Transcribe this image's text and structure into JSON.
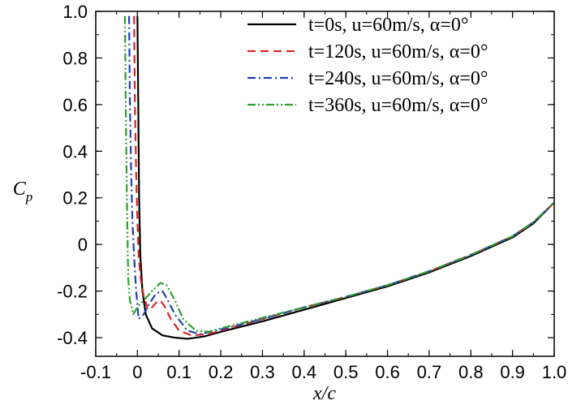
{
  "chart_data": {
    "type": "line",
    "xlabel": "x/c",
    "ylabel": "Cp",
    "xlim": [
      -0.1,
      1.0
    ],
    "ylim": [
      -0.48,
      1.0
    ],
    "xticks": [
      -0.1,
      0,
      0.1,
      0.2,
      0.3,
      0.4,
      0.5,
      0.6,
      0.7,
      0.8,
      0.9,
      1.0
    ],
    "xtick_labels": [
      "-0.1",
      "0",
      "0.1",
      "0.2",
      "0.3",
      "0.4",
      "0.5",
      "0.6",
      "0.7",
      "0.8",
      "0.9",
      "1.0"
    ],
    "yticks": [
      -0.4,
      -0.2,
      0,
      0.2,
      0.4,
      0.6,
      0.8,
      1.0
    ],
    "ytick_labels": [
      "-0.4",
      "-0.2",
      "0",
      "0.2",
      "0.4",
      "0.6",
      "0.8",
      "1.0"
    ],
    "legend_position": "top-right",
    "grid": false,
    "series": [
      {
        "name": "t=0s,    u=60m/s, α=0°",
        "color": "#000000",
        "dash": "solid",
        "points": [
          [
            0.0,
            0.98
          ],
          [
            0.002,
            0.6
          ],
          [
            0.004,
            0.2
          ],
          [
            0.007,
            -0.05
          ],
          [
            0.012,
            -0.2
          ],
          [
            0.02,
            -0.3
          ],
          [
            0.035,
            -0.36
          ],
          [
            0.06,
            -0.39
          ],
          [
            0.09,
            -0.4
          ],
          [
            0.12,
            -0.405
          ],
          [
            0.16,
            -0.395
          ],
          [
            0.2,
            -0.375
          ],
          [
            0.3,
            -0.33
          ],
          [
            0.4,
            -0.28
          ],
          [
            0.5,
            -0.23
          ],
          [
            0.6,
            -0.18
          ],
          [
            0.7,
            -0.12
          ],
          [
            0.8,
            -0.05
          ],
          [
            0.9,
            0.03
          ],
          [
            0.95,
            0.09
          ],
          [
            1.0,
            0.18
          ]
        ]
      },
      {
        "name": "t=120s, u=60m/s, α=0°",
        "color": "#d62728",
        "dash": "dashed",
        "points": [
          [
            -0.008,
            0.98
          ],
          [
            -0.006,
            0.6
          ],
          [
            -0.003,
            0.3
          ],
          [
            0.0,
            0.1
          ],
          [
            0.003,
            -0.05
          ],
          [
            0.008,
            -0.15
          ],
          [
            0.015,
            -0.22
          ],
          [
            0.025,
            -0.28
          ],
          [
            0.035,
            -0.27
          ],
          [
            0.045,
            -0.25
          ],
          [
            0.055,
            -0.24
          ],
          [
            0.065,
            -0.265
          ],
          [
            0.08,
            -0.32
          ],
          [
            0.1,
            -0.37
          ],
          [
            0.13,
            -0.39
          ],
          [
            0.17,
            -0.385
          ],
          [
            0.2,
            -0.37
          ],
          [
            0.3,
            -0.32
          ],
          [
            0.4,
            -0.27
          ],
          [
            0.5,
            -0.225
          ],
          [
            0.6,
            -0.175
          ],
          [
            0.7,
            -0.115
          ],
          [
            0.8,
            -0.045
          ],
          [
            0.9,
            0.035
          ],
          [
            0.95,
            0.095
          ],
          [
            1.0,
            0.18
          ]
        ]
      },
      {
        "name": "t=240s, u=60m/s, α=0°",
        "color": "#1f3fb4",
        "dash": "dashdot",
        "points": [
          [
            -0.02,
            0.98
          ],
          [
            -0.018,
            0.6
          ],
          [
            -0.015,
            0.3
          ],
          [
            -0.012,
            0.1
          ],
          [
            -0.008,
            -0.05
          ],
          [
            -0.003,
            -0.2
          ],
          [
            0.003,
            -0.32
          ],
          [
            0.015,
            -0.3
          ],
          [
            0.03,
            -0.25
          ],
          [
            0.045,
            -0.21
          ],
          [
            0.06,
            -0.2
          ],
          [
            0.07,
            -0.23
          ],
          [
            0.09,
            -0.3
          ],
          [
            0.12,
            -0.37
          ],
          [
            0.15,
            -0.385
          ],
          [
            0.2,
            -0.365
          ],
          [
            0.3,
            -0.32
          ],
          [
            0.4,
            -0.27
          ],
          [
            0.5,
            -0.225
          ],
          [
            0.6,
            -0.175
          ],
          [
            0.7,
            -0.115
          ],
          [
            0.8,
            -0.045
          ],
          [
            0.9,
            0.035
          ],
          [
            0.95,
            0.095
          ],
          [
            1.0,
            0.18
          ]
        ]
      },
      {
        "name": "t=360s, u=60m/s, α=0°",
        "color": "#2ca02c",
        "dash": "dashdotdot",
        "points": [
          [
            -0.03,
            0.98
          ],
          [
            -0.028,
            0.6
          ],
          [
            -0.026,
            0.3
          ],
          [
            -0.024,
            0.05
          ],
          [
            -0.022,
            -0.15
          ],
          [
            -0.018,
            -0.24
          ],
          [
            -0.01,
            -0.3
          ],
          [
            0.0,
            -0.27
          ],
          [
            0.015,
            -0.24
          ],
          [
            0.035,
            -0.2
          ],
          [
            0.055,
            -0.165
          ],
          [
            0.07,
            -0.175
          ],
          [
            0.09,
            -0.24
          ],
          [
            0.11,
            -0.32
          ],
          [
            0.14,
            -0.37
          ],
          [
            0.17,
            -0.375
          ],
          [
            0.2,
            -0.36
          ],
          [
            0.3,
            -0.315
          ],
          [
            0.4,
            -0.27
          ],
          [
            0.5,
            -0.225
          ],
          [
            0.6,
            -0.175
          ],
          [
            0.7,
            -0.115
          ],
          [
            0.8,
            -0.045
          ],
          [
            0.9,
            0.035
          ],
          [
            0.95,
            0.095
          ],
          [
            1.0,
            0.18
          ]
        ]
      }
    ]
  }
}
